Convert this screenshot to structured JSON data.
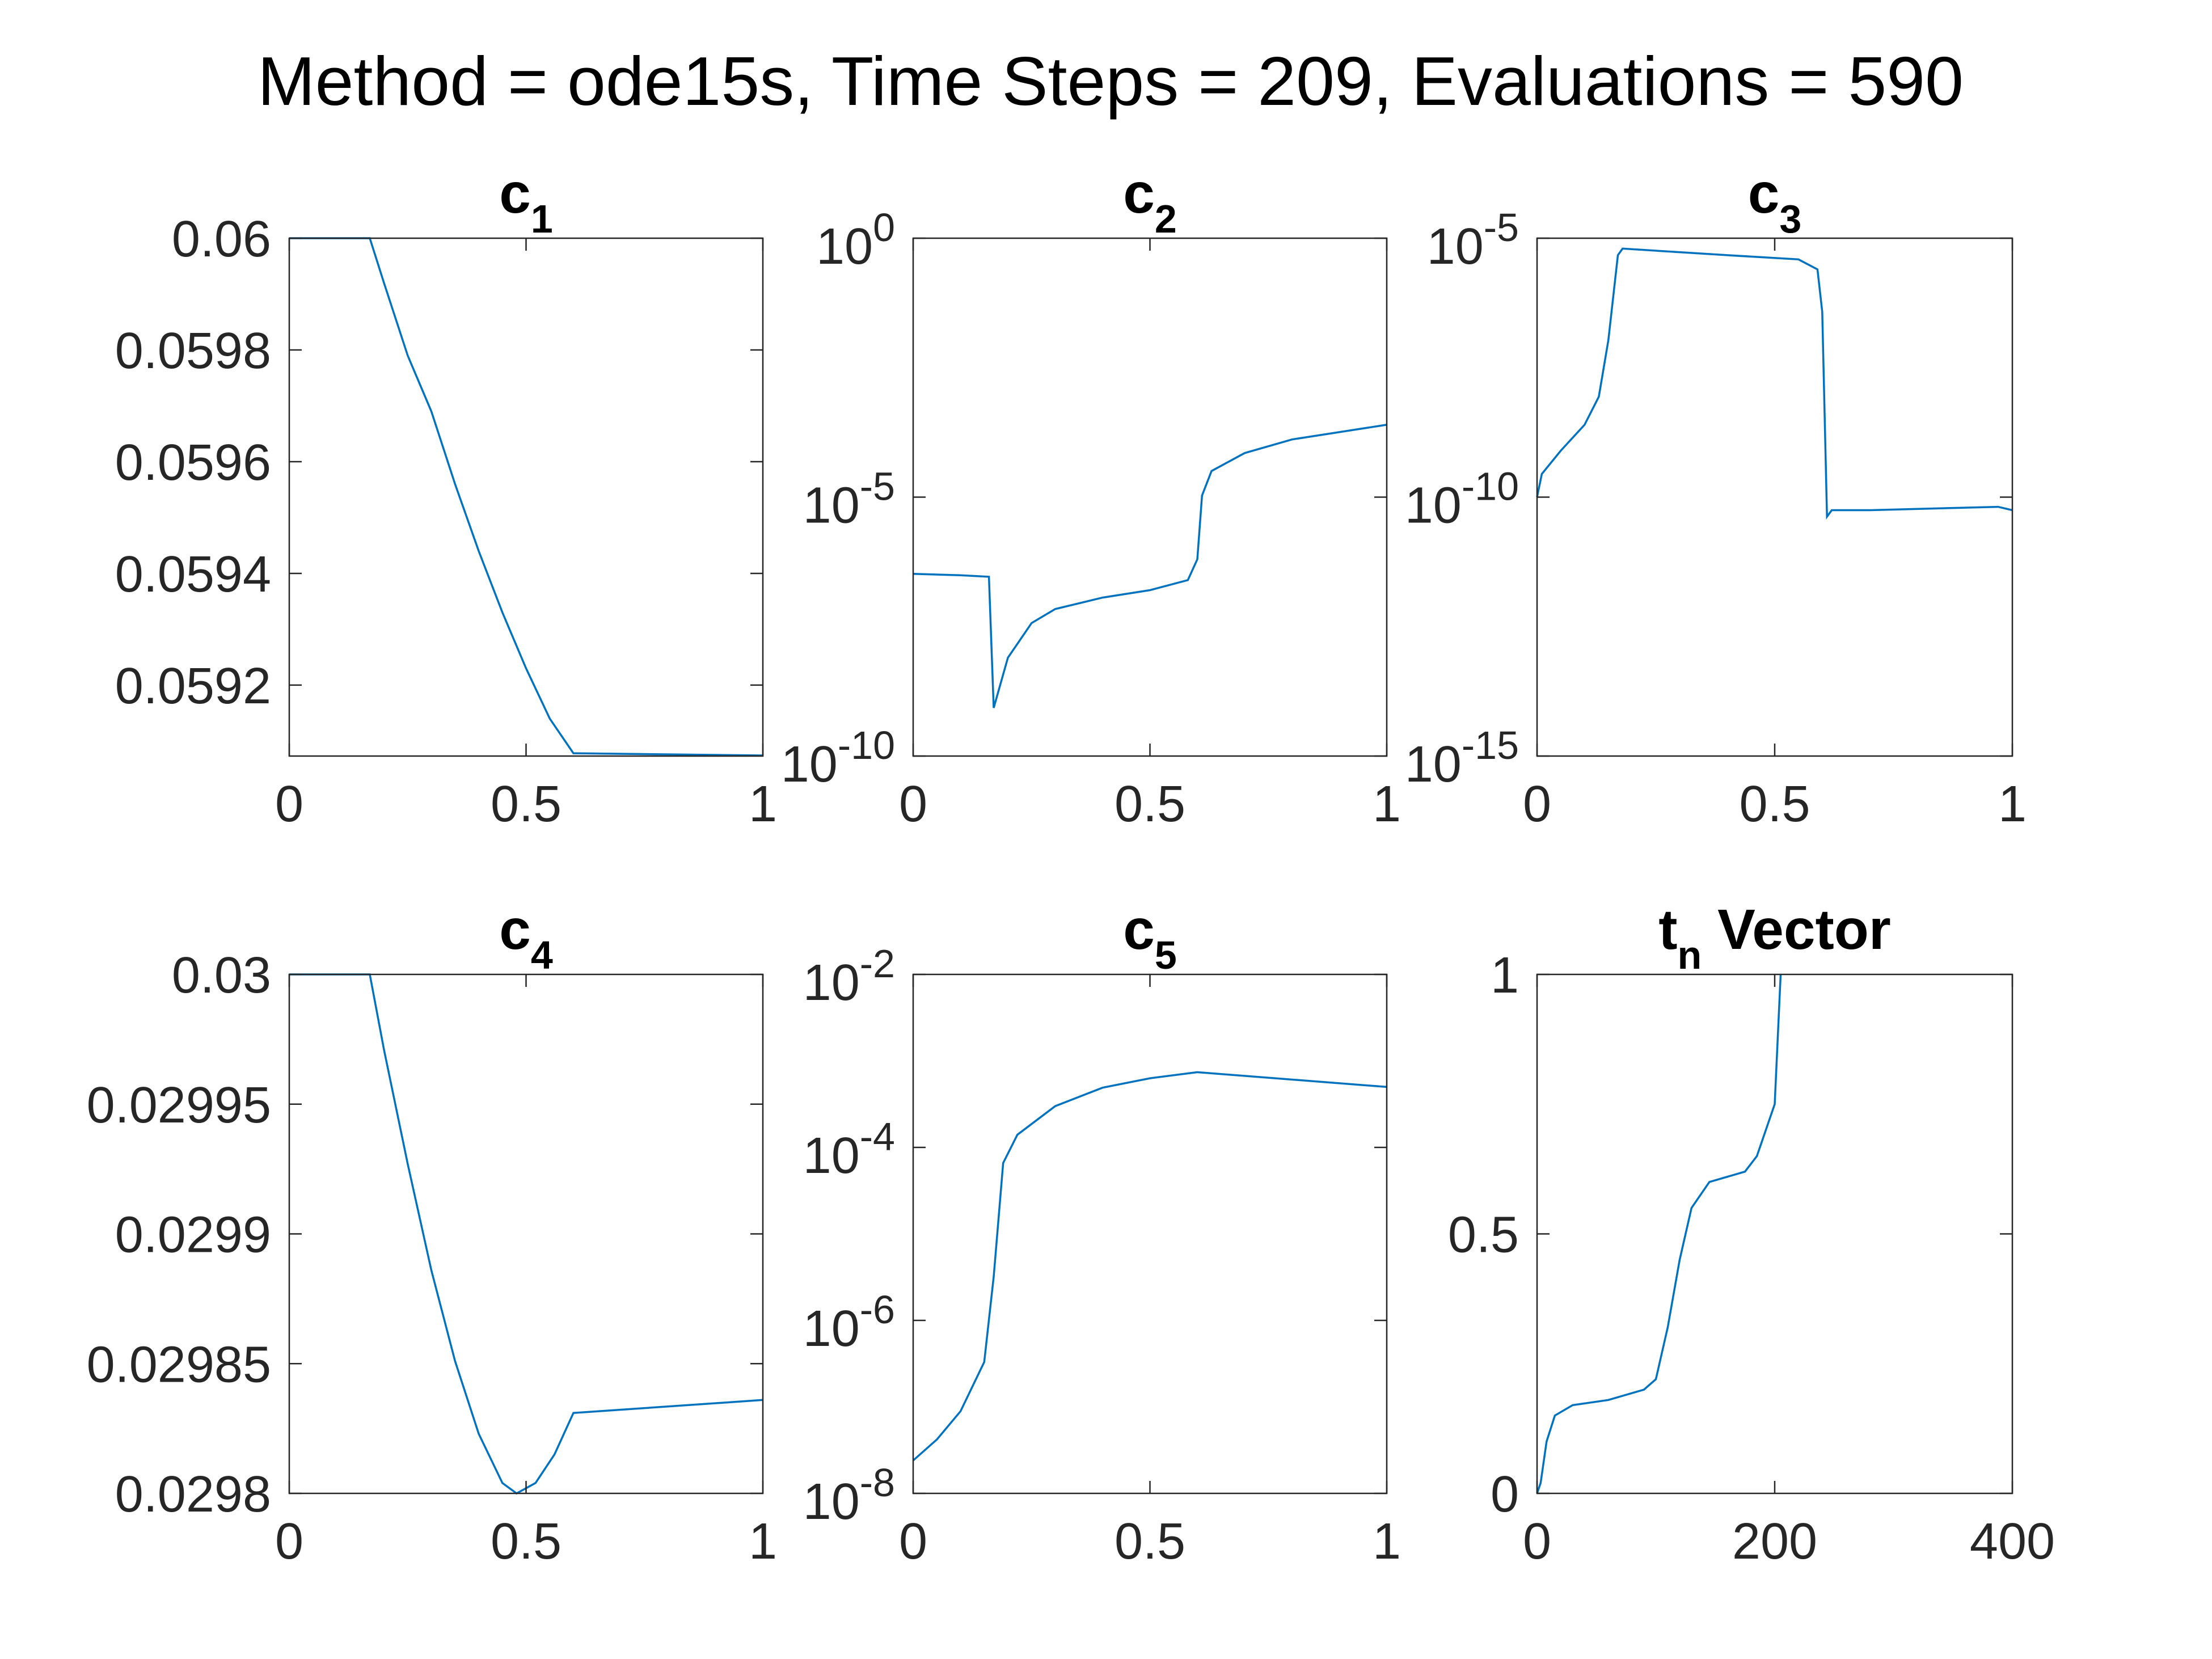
{
  "title": "Method = ode15s, Time Steps = 209, Evaluations = 590",
  "chart_data": [
    {
      "type": "line",
      "title": [
        "c",
        "1"
      ],
      "color": "#0072bd",
      "x": [
        0,
        0.17,
        0.2,
        0.25,
        0.3,
        0.35,
        0.4,
        0.45,
        0.5,
        0.55,
        0.6,
        1
      ],
      "values": [
        0.06,
        0.06,
        0.05992,
        0.05979,
        0.05969,
        0.05956,
        0.05944,
        0.05933,
        0.05923,
        0.05914,
        0.059078,
        0.059074
      ],
      "xlim": [
        0,
        1
      ],
      "xticks": [
        0,
        0.5,
        1
      ],
      "ylim": [
        0.059073,
        0.06
      ],
      "yticks": [
        0.0592,
        0.0594,
        0.0596,
        0.0598,
        0.06
      ]
    },
    {
      "type": "line",
      "title": [
        "c",
        "2"
      ],
      "color": "#0072bd",
      "yscale": "log",
      "x": [
        0,
        0.1,
        0.16,
        0.17,
        0.2,
        0.25,
        0.3,
        0.4,
        0.5,
        0.58,
        0.6,
        0.61,
        0.63,
        0.7,
        0.8,
        1
      ],
      "values": [
        3.3e-07,
        3.1e-07,
        2.9e-07,
        8.5e-10,
        7.9e-09,
        3.7e-08,
        6.9e-08,
        1.15e-07,
        1.6e-07,
        2.5e-07,
        6.3e-07,
        1.07e-05,
        3.2e-05,
        7.1e-05,
        0.00013,
        0.00025
      ],
      "xlim": [
        0,
        1
      ],
      "xticks": [
        0,
        0.5,
        1
      ],
      "ylim": [
        1e-10,
        1
      ],
      "yticks": [
        {
          "value": 1e-10,
          "label": [
            "10",
            "-10"
          ]
        },
        {
          "value": 1e-05,
          "label": [
            "10",
            "-5"
          ]
        },
        {
          "value": 1,
          "label": [
            "10",
            "0"
          ]
        }
      ]
    },
    {
      "type": "line",
      "title": [
        "c",
        "3"
      ],
      "color": "#0072bd",
      "yscale": "log",
      "x": [
        0,
        0.01,
        0.05,
        0.1,
        0.13,
        0.15,
        0.17,
        0.18,
        0.4,
        0.55,
        0.59,
        0.6,
        0.61,
        0.62,
        0.7,
        0.97,
        1
      ],
      "values": [
        1e-10,
        2.8e-10,
        7.9e-10,
        2.5e-09,
        8.7e-09,
        1.07e-07,
        4.7e-06,
        6.3e-06,
        4.7e-06,
        3.9e-06,
        2.5e-06,
        3.8e-07,
        4.2e-11,
        5.6e-11,
        5.6e-11,
        6.5e-11,
        5.6e-11
      ],
      "xlim": [
        0,
        1
      ],
      "xticks": [
        0,
        0.5,
        1
      ],
      "ylim": [
        1e-15,
        1e-05
      ],
      "yticks": [
        {
          "value": 1e-15,
          "label": [
            "10",
            "-15"
          ]
        },
        {
          "value": 1e-10,
          "label": [
            "10",
            "-10"
          ]
        },
        {
          "value": 1e-05,
          "label": [
            "10",
            "-5"
          ]
        }
      ]
    },
    {
      "type": "line",
      "title": [
        "c",
        "4"
      ],
      "color": "#0072bd",
      "x": [
        0,
        0.17,
        0.2,
        0.25,
        0.3,
        0.35,
        0.4,
        0.45,
        0.48,
        0.52,
        0.56,
        0.6,
        1
      ],
      "values": [
        0.03,
        0.03,
        0.029971,
        0.029927,
        0.029886,
        0.029851,
        0.029823,
        0.029804,
        0.0298,
        0.029804,
        0.029815,
        0.029831,
        0.029836
      ],
      "xlim": [
        0,
        1
      ],
      "xticks": [
        0,
        0.5,
        1
      ],
      "ylim": [
        0.0298,
        0.03
      ],
      "yticks": [
        0.0298,
        0.02985,
        0.0299,
        0.02995,
        0.03
      ]
    },
    {
      "type": "line",
      "title": [
        "c",
        "5"
      ],
      "color": "#0072bd",
      "yscale": "log",
      "x": [
        0,
        0.05,
        0.1,
        0.15,
        0.17,
        0.19,
        0.22,
        0.3,
        0.4,
        0.5,
        0.6,
        1
      ],
      "values": [
        2.4e-08,
        4.2e-08,
        8.9e-08,
        3.3e-07,
        3.2e-06,
        6.6e-05,
        0.00014,
        0.0003,
        0.00049,
        0.00063,
        0.00074,
        0.0005
      ],
      "xlim": [
        0,
        1
      ],
      "xticks": [
        0,
        0.5,
        1
      ],
      "ylim": [
        1e-08,
        0.01
      ],
      "yticks": [
        {
          "value": 1e-08,
          "label": [
            "10",
            "-8"
          ]
        },
        {
          "value": 1e-06,
          "label": [
            "10",
            "-6"
          ]
        },
        {
          "value": 0.0001,
          "label": [
            "10",
            "-4"
          ]
        },
        {
          "value": 0.01,
          "label": [
            "10",
            "-2"
          ]
        }
      ]
    },
    {
      "type": "line",
      "title": [
        "t",
        "n",
        " Vector"
      ],
      "color": "#0072bd",
      "x": [
        0,
        3,
        8,
        15,
        30,
        60,
        90,
        100,
        110,
        120,
        130,
        145,
        175,
        185,
        200,
        205
      ],
      "values": [
        0,
        0.02,
        0.1,
        0.15,
        0.17,
        0.18,
        0.2,
        0.22,
        0.32,
        0.45,
        0.55,
        0.6,
        0.62,
        0.65,
        0.75,
        1
      ],
      "xlim": [
        0,
        400
      ],
      "xticks": [
        0,
        200,
        400
      ],
      "ylim": [
        0,
        1
      ],
      "yticks": [
        0,
        0.5,
        1
      ]
    }
  ]
}
